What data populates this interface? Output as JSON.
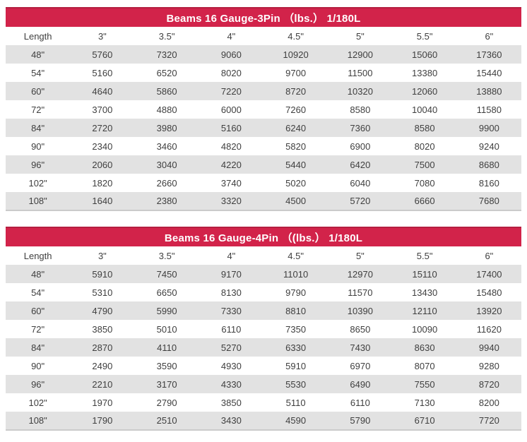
{
  "colors": {
    "accent": "#d2234a",
    "accent_edge": "#b51f40",
    "row_alt_bg": "#e2e2e2",
    "row_bg": "#ffffff",
    "text": "#3f3f3f",
    "title_text": "#ffffff",
    "table_border": "#cbcbcb"
  },
  "tables": [
    {
      "title": "Beams 16 Gauge-3Pin （lbs.） 1/180L",
      "columns": [
        "Length",
        "3\"",
        "3.5\"",
        "4\"",
        "4.5\"",
        "5\"",
        "5.5\"",
        "6\""
      ],
      "rows": [
        [
          "48\"",
          "5760",
          "7320",
          "9060",
          "10920",
          "12900",
          "15060",
          "17360"
        ],
        [
          "54\"",
          "5160",
          "6520",
          "8020",
          "9700",
          "11500",
          "13380",
          "15440"
        ],
        [
          "60\"",
          "4640",
          "5860",
          "7220",
          "8720",
          "10320",
          "12060",
          "13880"
        ],
        [
          "72\"",
          "3700",
          "4880",
          "6000",
          "7260",
          "8580",
          "10040",
          "11580"
        ],
        [
          "84\"",
          "2720",
          "3980",
          "5160",
          "6240",
          "7360",
          "8580",
          "9900"
        ],
        [
          "90\"",
          "2340",
          "3460",
          "4820",
          "5820",
          "6900",
          "8020",
          "9240"
        ],
        [
          "96\"",
          "2060",
          "3040",
          "4220",
          "5440",
          "6420",
          "7500",
          "8680"
        ],
        [
          "102\"",
          "1820",
          "2660",
          "3740",
          "5020",
          "6040",
          "7080",
          "8160"
        ],
        [
          "108\"",
          "1640",
          "2380",
          "3320",
          "4500",
          "5720",
          "6660",
          "7680"
        ]
      ]
    },
    {
      "title": "Beams 16 Gauge-4Pin （(lbs.） 1/180L",
      "columns": [
        "Length",
        "3\"",
        "3.5\"",
        "4\"",
        "4.5\"",
        "5\"",
        "5.5\"",
        "6\""
      ],
      "rows": [
        [
          "48\"",
          "5910",
          "7450",
          "9170",
          "11010",
          "12970",
          "15110",
          "17400"
        ],
        [
          "54\"",
          "5310",
          "6650",
          "8130",
          "9790",
          "11570",
          "13430",
          "15480"
        ],
        [
          "60\"",
          "4790",
          "5990",
          "7330",
          "8810",
          "10390",
          "12110",
          "13920"
        ],
        [
          "72\"",
          "3850",
          "5010",
          "6110",
          "7350",
          "8650",
          "10090",
          "11620"
        ],
        [
          "84\"",
          "2870",
          "4110",
          "5270",
          "6330",
          "7430",
          "8630",
          "9940"
        ],
        [
          "90\"",
          "2490",
          "3590",
          "4930",
          "5910",
          "6970",
          "8070",
          "9280"
        ],
        [
          "96\"",
          "2210",
          "3170",
          "4330",
          "5530",
          "6490",
          "7550",
          "8720"
        ],
        [
          "102\"",
          "1970",
          "2790",
          "3850",
          "5110",
          "6110",
          "7130",
          "8200"
        ],
        [
          "108\"",
          "1790",
          "2510",
          "3430",
          "4590",
          "5790",
          "6710",
          "7720"
        ]
      ]
    }
  ]
}
